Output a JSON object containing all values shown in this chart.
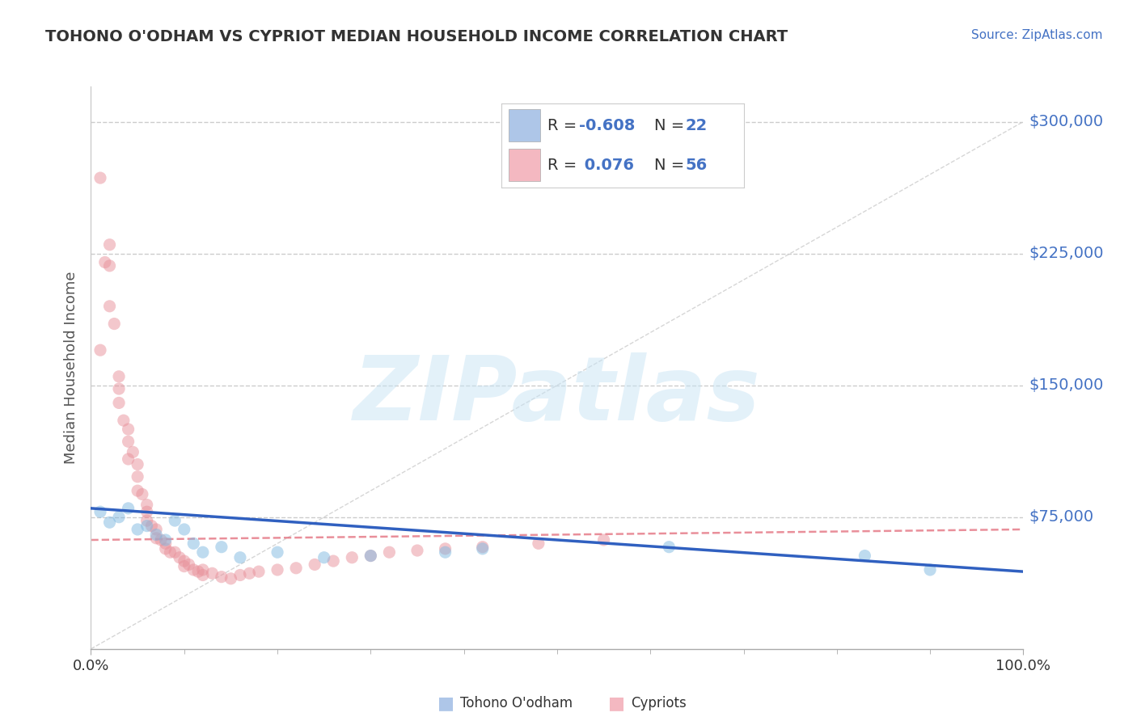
{
  "title": "TOHONO O'ODHAM VS CYPRIOT MEDIAN HOUSEHOLD INCOME CORRELATION CHART",
  "source": "Source: ZipAtlas.com",
  "ylabel": "Median Household Income",
  "xlim": [
    0,
    100
  ],
  "ylim": [
    0,
    320000
  ],
  "legend_entries": [
    {
      "label": "Tohono O'odham",
      "R": "-0.608",
      "N": "22",
      "patch_color": "#aec6e8",
      "dot_color": "#7fb8e0"
    },
    {
      "label": "Cypriots",
      "R": "0.076",
      "N": "56",
      "patch_color": "#f4b8c1",
      "dot_color": "#e8909a"
    }
  ],
  "blue_scatter_x": [
    1,
    2,
    3,
    4,
    5,
    6,
    7,
    8,
    9,
    10,
    11,
    12,
    14,
    16,
    20,
    25,
    30,
    38,
    42,
    62,
    83,
    90
  ],
  "blue_scatter_y": [
    78000,
    72000,
    75000,
    80000,
    68000,
    70000,
    65000,
    62000,
    73000,
    68000,
    60000,
    55000,
    58000,
    52000,
    55000,
    52000,
    53000,
    55000,
    57000,
    58000,
    53000,
    45000
  ],
  "pink_scatter_x": [
    1,
    1,
    1.5,
    2,
    2,
    2,
    2.5,
    3,
    3,
    3,
    3.5,
    4,
    4,
    4,
    4.5,
    5,
    5,
    5,
    5.5,
    6,
    6,
    6,
    6.5,
    7,
    7,
    7.5,
    8,
    8,
    8.5,
    9,
    9.5,
    10,
    10,
    10.5,
    11,
    11.5,
    12,
    12,
    13,
    14,
    15,
    16,
    17,
    18,
    20,
    22,
    24,
    26,
    28,
    30,
    32,
    35,
    38,
    42,
    48,
    55
  ],
  "pink_scatter_y": [
    268000,
    170000,
    220000,
    218000,
    230000,
    195000,
    185000,
    140000,
    148000,
    155000,
    130000,
    125000,
    118000,
    108000,
    112000,
    105000,
    98000,
    90000,
    88000,
    82000,
    78000,
    73000,
    70000,
    68000,
    63000,
    62000,
    60000,
    57000,
    55000,
    55000,
    52000,
    50000,
    47000,
    48000,
    45000,
    44000,
    42000,
    45000,
    43000,
    41000,
    40000,
    42000,
    43000,
    44000,
    45000,
    46000,
    48000,
    50000,
    52000,
    53000,
    55000,
    56000,
    57000,
    58000,
    60000,
    62000
  ],
  "blue_line_x": [
    0,
    100
  ],
  "blue_line_y": [
    80000,
    44000
  ],
  "pink_line_x": [
    0,
    100
  ],
  "pink_line_y": [
    62000,
    68000
  ],
  "ref_line_x": [
    0,
    100
  ],
  "ref_line_y": [
    0,
    300000
  ],
  "ytick_vals": [
    75000,
    150000,
    225000,
    300000
  ],
  "ytick_labels": [
    "$75,000",
    "$150,000",
    "$225,000",
    "$300,000"
  ],
  "xtick_vals": [
    0,
    100
  ],
  "xtick_labels": [
    "0.0%",
    "100.0%"
  ],
  "watermark_text": "ZIPatlas",
  "title_color": "#333333",
  "source_color": "#4472c4",
  "ylabel_color": "#555555",
  "ytick_color": "#4472c4",
  "grid_color": "#cccccc",
  "ref_line_color": "#cccccc",
  "blue_trend_color": "#3060c0",
  "pink_trend_color": "#e06070",
  "background_color": "#ffffff"
}
